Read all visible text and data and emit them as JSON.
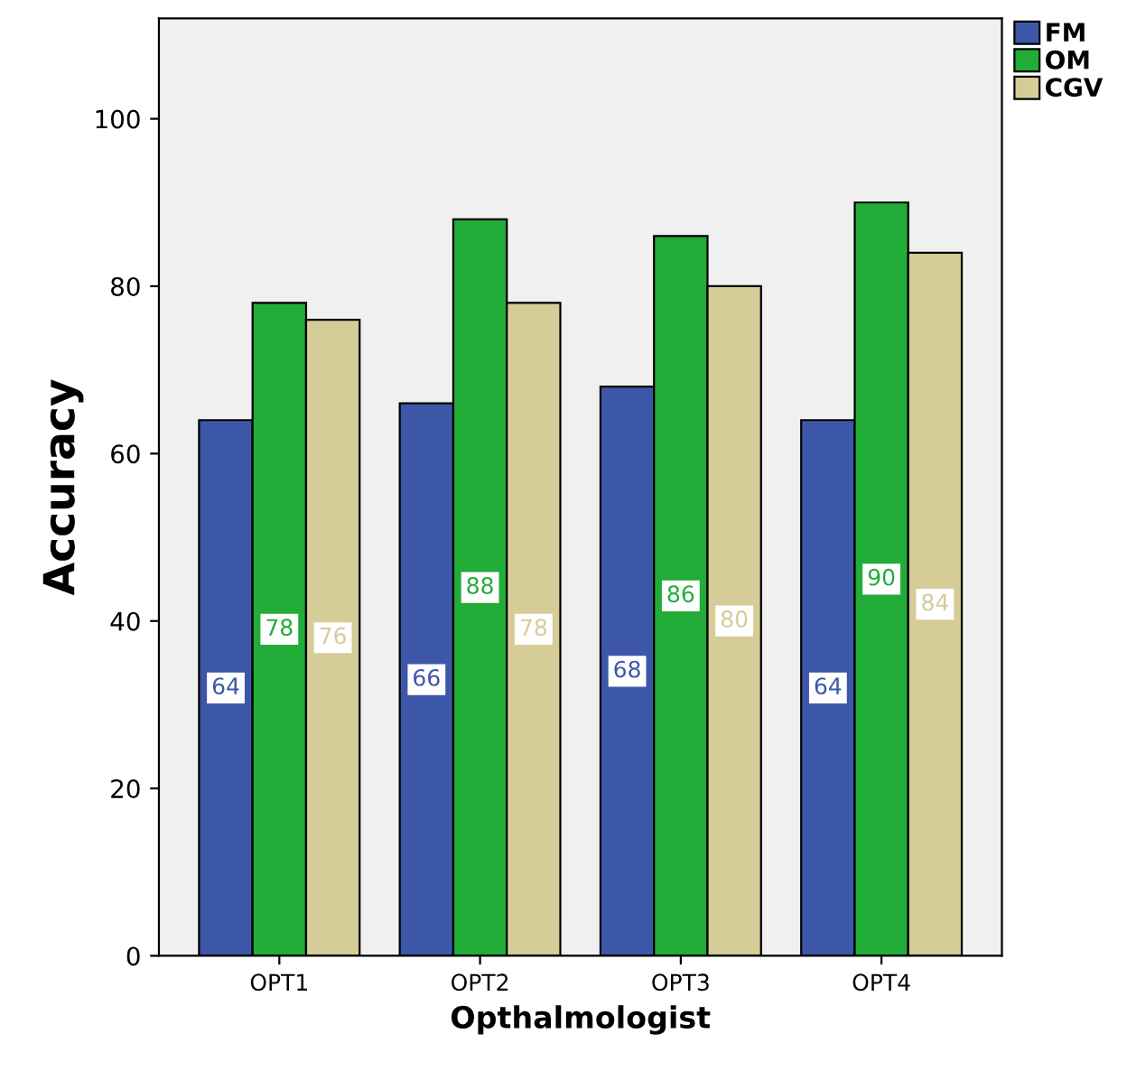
{
  "chart_data": {
    "type": "bar",
    "xlabel": "Opthalmologist",
    "ylabel": "Accuracy",
    "categories": [
      "OPT1",
      "OPT2",
      "OPT3",
      "OPT4"
    ],
    "series": [
      {
        "name": "FM",
        "color": "#3d57a8",
        "values": [
          64,
          66,
          68,
          64
        ]
      },
      {
        "name": "OM",
        "color": "#22ac38",
        "values": [
          78,
          88,
          86,
          90
        ]
      },
      {
        "name": "CGV",
        "color": "#d5cc98",
        "values": [
          76,
          78,
          80,
          84
        ]
      }
    ],
    "ylim": [
      0,
      112
    ],
    "yticks": [
      0,
      20,
      40,
      60,
      80,
      100
    ],
    "data_labels": true,
    "legend": "top right",
    "grid": false
  }
}
